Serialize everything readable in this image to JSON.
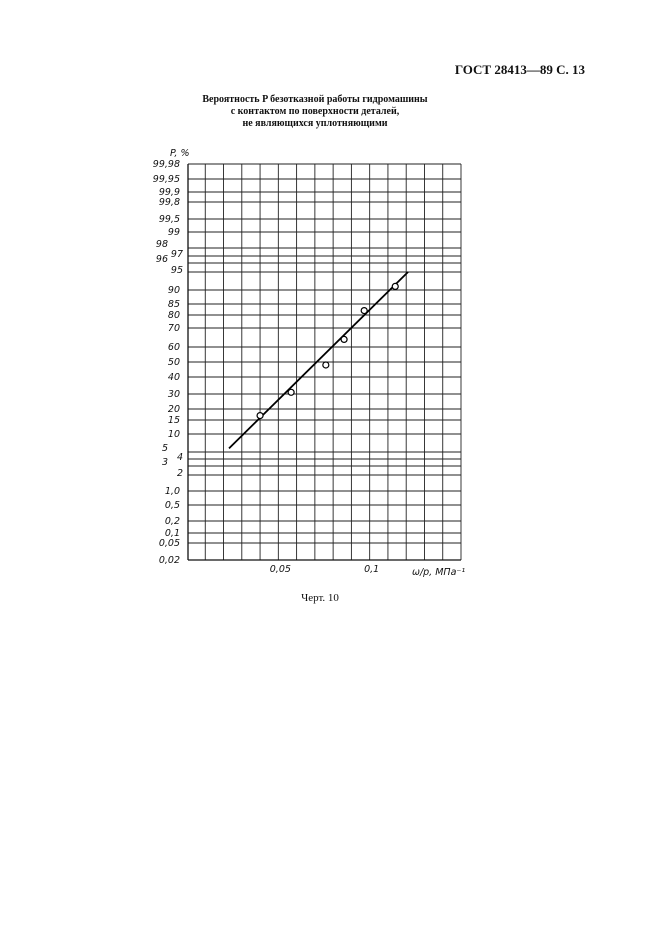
{
  "header": {
    "doc_ref": "ГОСТ 28413—89 С. 13"
  },
  "caption": "Черт. 10",
  "chart_data": {
    "type": "scatter",
    "title": [
      "Вероятность P безотказной работы гидромашины",
      "с контактом по поверхности деталей,",
      "не являющихся уплотняющими"
    ],
    "ylabel": "P, %",
    "xlabel": "ω/p, МПа⁻¹",
    "y_scale": "probability (normal)",
    "grid": true,
    "xlim": [
      0,
      0.15
    ],
    "x_gridstep": 0.01,
    "x_ticks": [
      {
        "value": 0.05,
        "label": "0,05"
      },
      {
        "value": 0.1,
        "label": "0,1"
      }
    ],
    "y_ticks": [
      {
        "value": 99.98,
        "label": "99,98"
      },
      {
        "value": 99.95,
        "label": "99,95"
      },
      {
        "value": 99.9,
        "label": "99,9"
      },
      {
        "value": 99.8,
        "label": "99,8"
      },
      {
        "value": 99.5,
        "label": "99,5"
      },
      {
        "value": 99,
        "label": "99"
      },
      {
        "value": 98,
        "label": "98"
      },
      {
        "value": 97,
        "label": "97"
      },
      {
        "value": 96,
        "label": "96"
      },
      {
        "value": 95,
        "label": "95"
      },
      {
        "value": 90,
        "label": "90"
      },
      {
        "value": 85,
        "label": "85"
      },
      {
        "value": 80,
        "label": "80"
      },
      {
        "value": 70,
        "label": "70"
      },
      {
        "value": 60,
        "label": "60"
      },
      {
        "value": 50,
        "label": "50"
      },
      {
        "value": 40,
        "label": "40"
      },
      {
        "value": 30,
        "label": "30"
      },
      {
        "value": 20,
        "label": "20"
      },
      {
        "value": 15,
        "label": "15"
      },
      {
        "value": 10,
        "label": "10"
      },
      {
        "value": 5,
        "label": "5"
      },
      {
        "value": 4,
        "label": "4"
      },
      {
        "value": 3,
        "label": "3"
      },
      {
        "value": 2,
        "label": "2"
      },
      {
        "value": 1,
        "label": "1,0"
      },
      {
        "value": 0.5,
        "label": "0,5"
      },
      {
        "value": 0.2,
        "label": "0,2"
      },
      {
        "value": 0.1,
        "label": "0,1"
      },
      {
        "value": 0.05,
        "label": "0,05"
      },
      {
        "value": 0.02,
        "label": "0,02"
      }
    ],
    "points": [
      {
        "x": 0.04,
        "y": 17
      },
      {
        "x": 0.057,
        "y": 31
      },
      {
        "x": 0.076,
        "y": 48
      },
      {
        "x": 0.086,
        "y": 64
      },
      {
        "x": 0.097,
        "y": 82
      },
      {
        "x": 0.114,
        "y": 91
      }
    ],
    "fit_line": [
      {
        "x": 0.023,
        "y": 6
      },
      {
        "x": 0.121,
        "y": 95
      }
    ]
  }
}
